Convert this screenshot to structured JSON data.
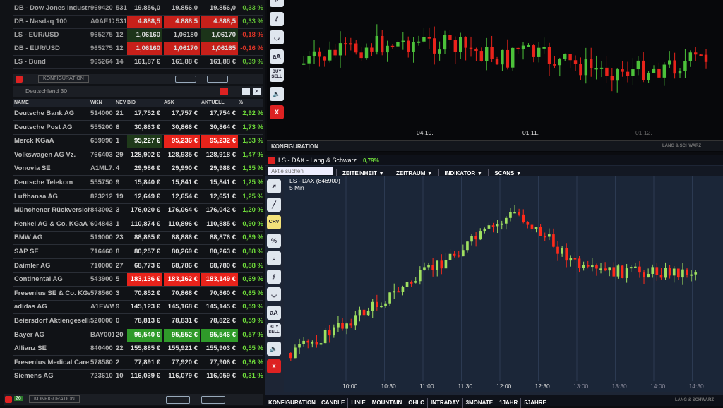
{
  "indices": [
    {
      "name": "DB - Dow Jones Industria",
      "wkn": "969420",
      "nev": "531",
      "bid": "19.856,0",
      "ask": "19.856,0",
      "akt": "19.856,0",
      "pct": "0,33 %",
      "hl": ""
    },
    {
      "name": "DB - Nasdaq 100",
      "wkn": "A0AE1X",
      "nev": "531",
      "bid": "4.888,5",
      "ask": "4.888,5",
      "akt": "4.888,5",
      "pct": "0,33 %",
      "hl": "red"
    },
    {
      "name": "LS - EUR/USD",
      "wkn": "965275",
      "nev": "12",
      "bid": "1,06160",
      "ask": "1,06180",
      "akt": "1,06170",
      "pct": "-0,18 %",
      "hl": "dgr",
      "neg": true
    },
    {
      "name": "DB - EUR/USD",
      "wkn": "965275",
      "nev": "12",
      "bid": "1,06160",
      "ask": "1,06170",
      "akt": "1,06165",
      "pct": "-0,16 %",
      "hl": "red",
      "neg": true
    },
    {
      "name": "LS - Bund",
      "wkn": "965264",
      "nev": "14",
      "bid": "161,87 €",
      "ask": "161,88 €",
      "akt": "161,88 €",
      "pct": "0,39 %",
      "hl": ""
    }
  ],
  "left_toolbar": {
    "config": "KONFIGURATION",
    "badge": "26"
  },
  "watchlist": {
    "title": "Deutschland 30",
    "columns": [
      "NAME",
      "WKN",
      "NEV",
      "BID",
      "ASK",
      "AKTUELL",
      "%"
    ],
    "rows": [
      {
        "name": "Deutsche Bank AG",
        "wkn": "514000",
        "nev": "21",
        "bid": "17,752 €",
        "ask": "17,757 €",
        "akt": "17,754 €",
        "pct": "2,92 %",
        "hl": ""
      },
      {
        "name": "Deutsche Post AG",
        "wkn": "555200",
        "nev": "6",
        "bid": "30,863 €",
        "ask": "30,866 €",
        "akt": "30,864 €",
        "pct": "1,73 %",
        "hl": ""
      },
      {
        "name": "Merck KGaA",
        "wkn": "659990",
        "nev": "1",
        "bid": "95,227 €",
        "ask": "95,236 €",
        "akt": "95,232 €",
        "pct": "1,53 %",
        "hl": "merck"
      },
      {
        "name": "Volkswagen AG Vz.",
        "wkn": "766403",
        "nev": "29",
        "bid": "128,902 €",
        "ask": "128,935 €",
        "akt": "128,918 €",
        "pct": "1,47 %",
        "hl": ""
      },
      {
        "name": "Vonovia SE",
        "wkn": "A1ML7J",
        "nev": "4",
        "bid": "29,986 €",
        "ask": "29,990 €",
        "akt": "29,988 €",
        "pct": "1,35 %",
        "hl": ""
      },
      {
        "name": "Deutsche Telekom",
        "wkn": "555750",
        "nev": "9",
        "bid": "15,840 €",
        "ask": "15,841 €",
        "akt": "15,841 €",
        "pct": "1,25 %",
        "hl": ""
      },
      {
        "name": "Lufthansa AG",
        "wkn": "823212",
        "nev": "19",
        "bid": "12,649 €",
        "ask": "12,654 €",
        "akt": "12,651 €",
        "pct": "1,25 %",
        "hl": ""
      },
      {
        "name": "Münchener Rückversiche",
        "wkn": "843002",
        "nev": "3",
        "bid": "176,020 €",
        "ask": "176,064 €",
        "akt": "176,042 €",
        "pct": "1,20 %",
        "hl": ""
      },
      {
        "name": "Henkel AG & Co. KGaA V.",
        "wkn": "604843",
        "nev": "1",
        "bid": "110,874 €",
        "ask": "110,896 €",
        "akt": "110,885 €",
        "pct": "0,90 %",
        "hl": ""
      },
      {
        "name": "BMW AG",
        "wkn": "519000",
        "nev": "23",
        "bid": "88,865 €",
        "ask": "88,886 €",
        "akt": "88,876 €",
        "pct": "0,89 %",
        "hl": ""
      },
      {
        "name": "SAP SE",
        "wkn": "716460",
        "nev": "8",
        "bid": "80,257 €",
        "ask": "80,269 €",
        "akt": "80,263 €",
        "pct": "0,88 %",
        "hl": ""
      },
      {
        "name": "Daimler AG",
        "wkn": "710000",
        "nev": "27",
        "bid": "68,773 €",
        "ask": "68,786 €",
        "akt": "68,780 €",
        "pct": "0,88 %",
        "hl": ""
      },
      {
        "name": "Continental AG",
        "wkn": "543900",
        "nev": "5",
        "bid": "183,136 €",
        "ask": "183,162 €",
        "akt": "183,149 €",
        "pct": "0,69 %",
        "hl": "red"
      },
      {
        "name": "Fresenius SE & Co. KGaA",
        "wkn": "578560",
        "nev": "3",
        "bid": "70,852 €",
        "ask": "70,868 €",
        "akt": "70,860 €",
        "pct": "0,65 %",
        "hl": ""
      },
      {
        "name": "adidas AG",
        "wkn": "A1EWW",
        "nev": "9",
        "bid": "145,123 €",
        "ask": "145,168 €",
        "akt": "145,145 €",
        "pct": "0,59 %",
        "hl": ""
      },
      {
        "name": "Beiersdorf Aktiengesellsc",
        "wkn": "520000",
        "nev": "0",
        "bid": "78,813 €",
        "ask": "78,831 €",
        "akt": "78,822 €",
        "pct": "0,59 %",
        "hl": ""
      },
      {
        "name": "Bayer AG",
        "wkn": "BAY001",
        "nev": "20",
        "bid": "95,540 €",
        "ask": "95,552 €",
        "akt": "95,546 €",
        "pct": "0,57 %",
        "hl": "grn"
      },
      {
        "name": "Allianz SE",
        "wkn": "840400",
        "nev": "22",
        "bid": "155,885 €",
        "ask": "155,921 €",
        "akt": "155,903 €",
        "pct": "0,55 %",
        "hl": ""
      },
      {
        "name": "Fresenius Medical Care A",
        "wkn": "578580",
        "nev": "2",
        "bid": "77,891 €",
        "ask": "77,920 €",
        "akt": "77,906 €",
        "pct": "0,36 %",
        "hl": ""
      },
      {
        "name": "Siemens AG",
        "wkn": "723610",
        "nev": "10",
        "bid": "116,039 €",
        "ask": "116,079 €",
        "akt": "116,059 €",
        "pct": "0,31 %",
        "hl": ""
      }
    ]
  },
  "top_chart": {
    "x_ticks": [
      "04.10.",
      "01.11.",
      "01.12."
    ],
    "config": "KONFIGURATION",
    "brand": "LANG & SCHWARZ"
  },
  "dax_chart": {
    "window_title": "LS - DAX - Lang & Schwarz",
    "change": "0,79%",
    "search_placeholder": "Aktie suchen",
    "menus": [
      "ZEITEINHEIT",
      "ZEITRAUM",
      "INDIKATOR",
      "SCANS"
    ],
    "instrument": "LS - DAX (846900)",
    "interval": "5 Min",
    "x_ticks": [
      "10:00",
      "10:30",
      "11:00",
      "11:30",
      "12:00",
      "12:30",
      "13:00",
      "13:30",
      "14:00",
      "14:30"
    ],
    "bottom_menu": [
      "KONFIGURATION",
      "CANDLE",
      "LINIE",
      "MOUNTAIN",
      "OHLC",
      "INTRADAY",
      "3MONATE",
      "1JAHR",
      "5JAHRE"
    ],
    "brand": "LANG & SCHWARZ",
    "up_color": "#9fe060",
    "down_color": "#ff2a1a"
  },
  "tools": [
    "pointer",
    "line",
    "CRV",
    "%",
    "zoom",
    "parallel",
    "arc",
    "aA",
    "BUY SELL",
    "speaker",
    "X"
  ]
}
